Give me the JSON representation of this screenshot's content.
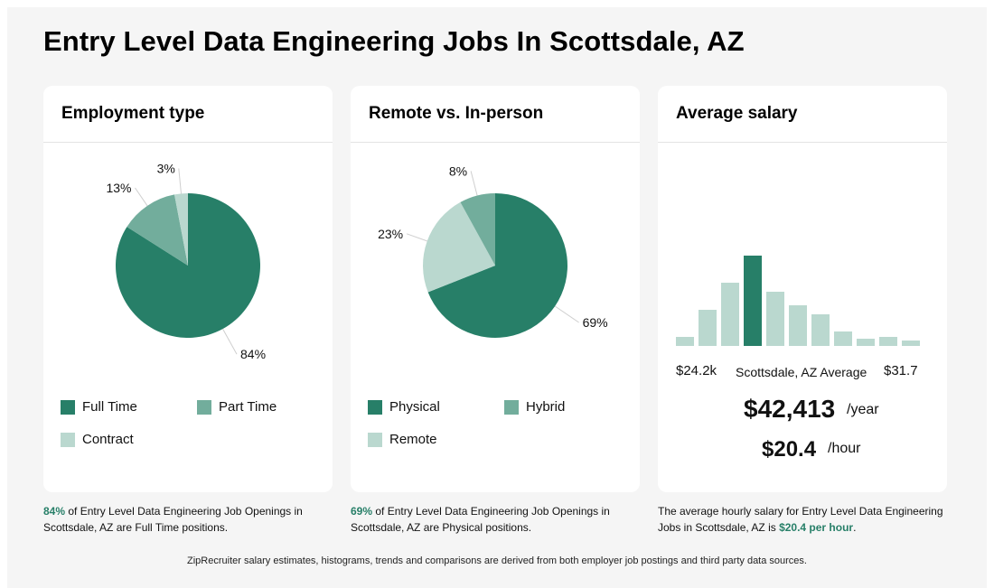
{
  "page": {
    "title": "Entry Level Data Engineering Jobs In Scottsdale, AZ"
  },
  "colors": {
    "dark": "#277f68",
    "medium": "#72ad9c",
    "light": "#bad8cf",
    "accent_text": "#277f68"
  },
  "cards": {
    "employment": {
      "title": "Employment type",
      "legend": [
        "Full Time",
        "Part Time",
        "Contract"
      ],
      "caption": {
        "highlight": "84%",
        "text": " of Entry Level Data Engineering Job Openings in Scottsdale, AZ are Full Time positions."
      }
    },
    "remote": {
      "title": "Remote vs. In-person",
      "legend": [
        "Physical",
        "Hybrid",
        "Remote"
      ],
      "caption": {
        "highlight": "69%",
        "text": " of Entry Level Data Engineering Job Openings in Scottsdale, AZ are Physical positions."
      }
    },
    "salary": {
      "title": "Average salary",
      "range_low": "$24.2k",
      "range_label": "Scottsdale, AZ Average",
      "range_high": "$31.7",
      "yearly": "$42,413",
      "yearly_unit": "/year",
      "hourly": "$20.4",
      "hourly_unit": "/hour",
      "caption": {
        "text": "The average hourly salary for Entry Level Data Engineering Jobs in Scottsdale, AZ is ",
        "highlight": "$20.4 per hour",
        "suffix": "."
      }
    }
  },
  "chart_data": [
    {
      "type": "pie",
      "title": "Employment type",
      "labels": [
        "Full Time",
        "Part Time",
        "Contract"
      ],
      "values": [
        84,
        13,
        3
      ],
      "value_labels": [
        "84%",
        "13%",
        "3%"
      ]
    },
    {
      "type": "pie",
      "title": "Remote vs. In-person",
      "labels": [
        "Physical",
        "Remote",
        "Hybrid"
      ],
      "values": [
        69,
        23,
        8
      ],
      "value_labels": [
        "69%",
        "23%",
        "8%"
      ]
    },
    {
      "type": "bar",
      "title": "Average salary",
      "values": [
        1,
        4,
        7,
        10,
        6,
        4.5,
        3.5,
        1.6,
        0.8,
        1,
        0.6
      ],
      "highlight_index": 3,
      "xlabel": "",
      "ylabel": ""
    }
  ],
  "footer": "ZipRecruiter salary estimates, histograms, trends and comparisons are derived from both employer job postings and third party data sources."
}
